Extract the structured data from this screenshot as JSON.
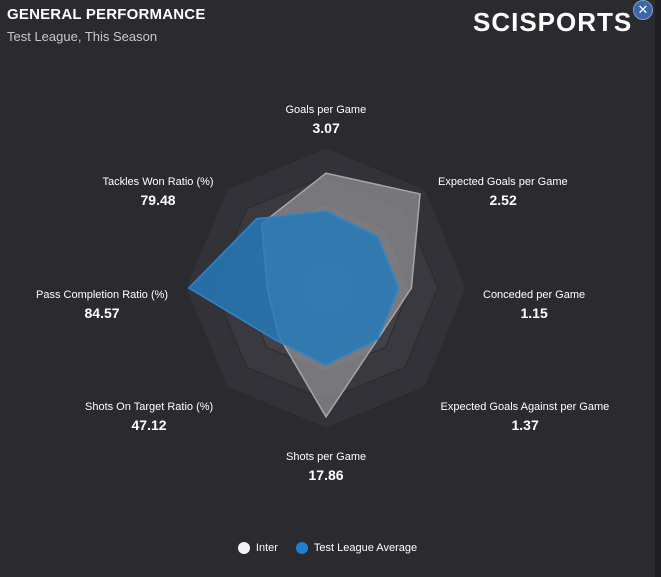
{
  "header": {
    "title": "GENERAL PERFORMANCE",
    "subtitle": "Test League, This Season",
    "logo_text": "SCISPORTS",
    "close_icon": "close-icon"
  },
  "colors": {
    "team": "#8a8a8f",
    "league": "#2b7fbf",
    "team_legend": "#f2f2f2",
    "league_legend": "#1f7fd0"
  },
  "chart_data": {
    "type": "radar",
    "axes": [
      {
        "label": "Goals per Game",
        "value": "3.07"
      },
      {
        "label": "Expected Goals per Game",
        "value": "2.52"
      },
      {
        "label": "Conceded per Game",
        "value": "1.15"
      },
      {
        "label": "Expected Goals Against per Game",
        "value": "1.37"
      },
      {
        "label": "Shots per Game",
        "value": "17.86"
      },
      {
        "label": "Shots On Target Ratio (%)",
        "value": "47.12"
      },
      {
        "label": "Pass Completion Ratio (%)",
        "value": "84.57"
      },
      {
        "label": "Tackles Won Ratio (%)",
        "value": "79.48"
      }
    ],
    "rings": 5,
    "series": [
      {
        "name": "Inter",
        "values": [
          0.82,
          0.95,
          0.61,
          0.52,
          0.92,
          0.48,
          0.42,
          0.65
        ]
      },
      {
        "name": "Test League Average",
        "values": [
          0.55,
          0.52,
          0.52,
          0.52,
          0.55,
          0.52,
          0.98,
          0.7
        ]
      }
    ]
  },
  "legend": [
    {
      "name": "Inter"
    },
    {
      "name": "Test League Average"
    }
  ]
}
